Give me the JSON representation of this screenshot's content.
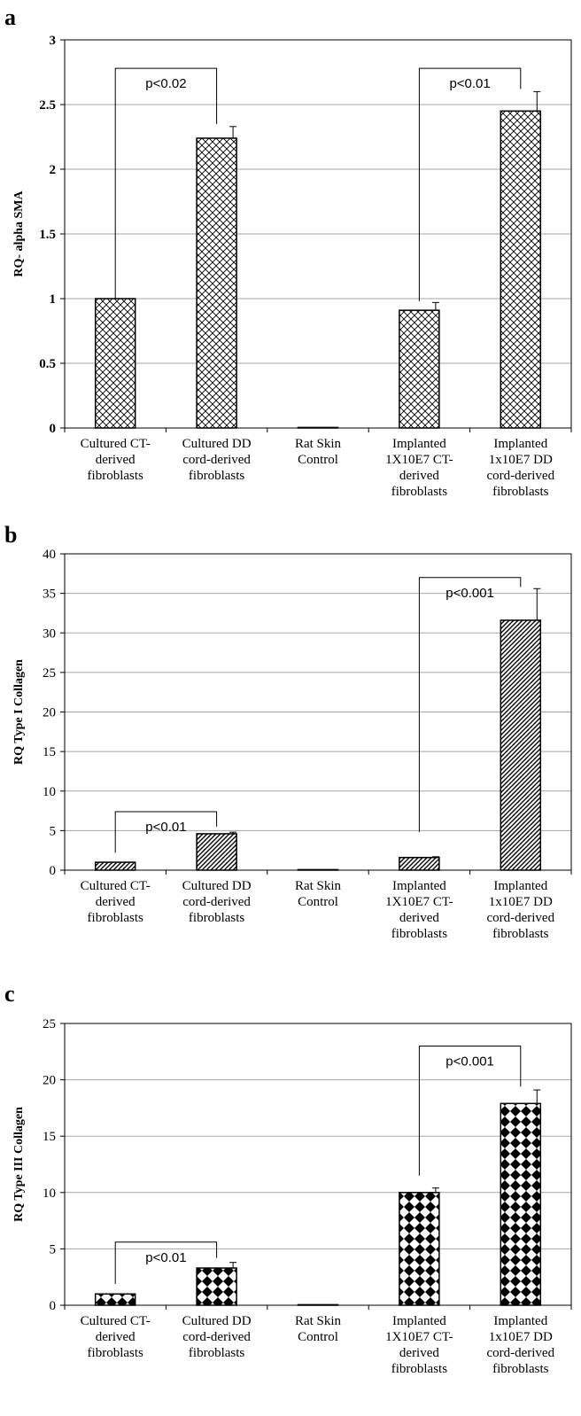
{
  "chart_data": [
    {
      "panel": "a",
      "type": "bar",
      "ylabel": "RQ- alpha SMA",
      "ylim": [
        0,
        3
      ],
      "yticks": [
        "0",
        "0.5",
        "1",
        "1.5",
        "2",
        "2.5",
        "3"
      ],
      "ytick_style": "bold",
      "grid": true,
      "pattern": "crosshatch",
      "categories": [
        [
          "Cultured CT-",
          "derived",
          "fibroblasts"
        ],
        [
          "Cultured DD",
          "cord-derived",
          "fibroblasts"
        ],
        [
          "Rat Skin",
          "Control"
        ],
        [
          "Implanted",
          "1X10E7 CT-",
          "derived",
          "fibroblasts"
        ],
        [
          "Implanted",
          "1x10E7 DD",
          "cord-derived",
          "fibroblasts"
        ]
      ],
      "values": [
        1.0,
        2.24,
        0.0,
        0.91,
        2.45
      ],
      "errors": [
        0.0,
        0.09,
        0.0,
        0.06,
        0.15
      ],
      "annotations": [
        {
          "text": "p<0.02",
          "from": 0,
          "to": 1,
          "level": 2.78,
          "left_end": 1.0,
          "right_end": 2.35
        },
        {
          "text": "p<0.01",
          "from": 3,
          "to": 4,
          "level": 2.78,
          "left_end": 0.98,
          "right_end": 2.62
        }
      ]
    },
    {
      "panel": "b",
      "type": "bar",
      "ylabel": "RQ Type I Collagen",
      "ylim": [
        0,
        40
      ],
      "yticks": [
        "0",
        "5",
        "10",
        "15",
        "20",
        "25",
        "30",
        "35",
        "40"
      ],
      "ytick_style": "normal",
      "grid": true,
      "pattern": "diagonal",
      "categories": [
        [
          "Cultured CT-",
          "derived",
          "fibroblasts"
        ],
        [
          "Cultured DD",
          "cord-derived",
          "fibroblasts"
        ],
        [
          "Rat Skin",
          "Control"
        ],
        [
          "Implanted",
          "1X10E7 CT-",
          "derived",
          "fibroblasts"
        ],
        [
          "Implanted",
          "1x10E7 DD",
          "cord-derived",
          "fibroblasts"
        ]
      ],
      "values": [
        1.0,
        4.6,
        0.0,
        1.6,
        31.6
      ],
      "errors": [
        0.0,
        0.2,
        0.0,
        0.1,
        4.0
      ],
      "annotations": [
        {
          "text": "p<0.01",
          "from": 0,
          "to": 1,
          "level": 7.4,
          "left_end": 2.2,
          "right_end": 5.5
        },
        {
          "text": "p<0.001",
          "from": 3,
          "to": 4,
          "level": 37.0,
          "left_end": 4.8,
          "right_end": 35.8
        }
      ]
    },
    {
      "panel": "c",
      "type": "bar",
      "ylabel": "RQ Type III Collagen",
      "ylim": [
        0,
        25
      ],
      "yticks": [
        "0",
        "5",
        "10",
        "15",
        "20",
        "25"
      ],
      "ytick_style": "normal",
      "grid": true,
      "pattern": "checker",
      "categories": [
        [
          "Cultured CT-",
          "derived",
          "fibroblasts"
        ],
        [
          "Cultured DD",
          "cord-derived",
          "fibroblasts"
        ],
        [
          "Rat Skin",
          "Control"
        ],
        [
          "Implanted",
          "1X10E7 CT-",
          "derived",
          "fibroblasts"
        ],
        [
          "Implanted",
          "1x10E7 DD",
          "cord-derived",
          "fibroblasts"
        ]
      ],
      "values": [
        1.0,
        3.3,
        0.0,
        10.0,
        17.9
      ],
      "errors": [
        0.0,
        0.5,
        0.0,
        0.4,
        1.2
      ],
      "annotations": [
        {
          "text": "p<0.01",
          "from": 0,
          "to": 1,
          "level": 5.6,
          "left_end": 1.9,
          "right_end": 4.2
        },
        {
          "text": "p<0.001",
          "from": 3,
          "to": 4,
          "level": 23.0,
          "left_end": 11.5,
          "right_end": 19.4
        }
      ]
    }
  ]
}
